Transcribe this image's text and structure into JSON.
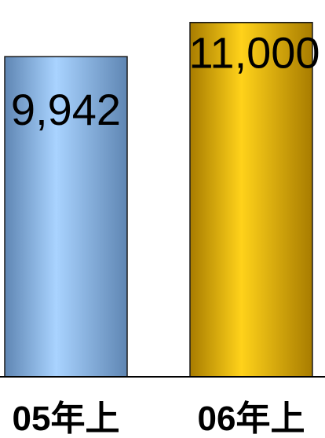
{
  "chart_data": {
    "type": "bar",
    "categories": [
      "05年上",
      "06年上"
    ],
    "values": [
      9942,
      11000
    ],
    "value_labels": [
      "9,942",
      "11,000"
    ],
    "title": "",
    "xlabel": "",
    "ylabel": "",
    "ylim": [
      0,
      11700
    ],
    "grid": false,
    "legend": "none",
    "colors": {
      "bar_1_light": "#a9d3ff",
      "bar_1_dark": "#5f86b3",
      "bar_2_light": "#ffd21a",
      "bar_2_dark": "#a87c00",
      "outline": "#1a1a1a",
      "axis": "#000000"
    }
  }
}
